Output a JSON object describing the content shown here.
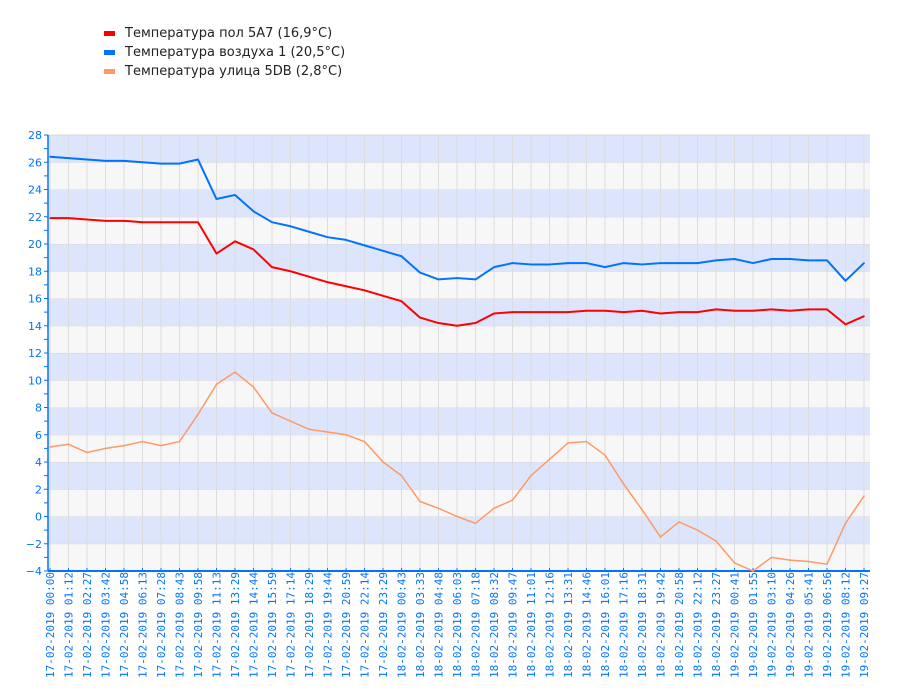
{
  "legend": [
    {
      "label": "Температура пол 5A7 (16,9°C)",
      "color": "#ff0000"
    },
    {
      "label": "Температура воздуха 1 (20,5°C)",
      "color": "#0073ff"
    },
    {
      "label": "Температура улица 5DB (2,8°C)",
      "color": "#ff9966"
    }
  ],
  "chart_data": {
    "type": "line",
    "title": "",
    "xlabel": "",
    "ylabel": "",
    "ylim": [
      -4,
      28
    ],
    "yticks": [
      -4,
      -2,
      0,
      2,
      4,
      6,
      8,
      10,
      12,
      14,
      16,
      18,
      20,
      22,
      24,
      26,
      28
    ],
    "grid": true,
    "legend_position": "top-left",
    "axis_color": "#0073ff",
    "band_colors": [
      "#dde5fc",
      "#f7f7f7"
    ],
    "categories": [
      "17-02-2019 00:00",
      "17-02-2019 01:12",
      "17-02-2019 02:27",
      "17-02-2019 03:42",
      "17-02-2019 04:58",
      "17-02-2019 06:13",
      "17-02-2019 07:28",
      "17-02-2019 08:43",
      "17-02-2019 09:58",
      "17-02-2019 11:13",
      "17-02-2019 13:29",
      "17-02-2019 14:44",
      "17-02-2019 15:59",
      "17-02-2019 17:14",
      "17-02-2019 18:29",
      "17-02-2019 19:44",
      "17-02-2019 20:59",
      "17-02-2019 22:14",
      "17-02-2019 23:29",
      "18-02-2019 00:43",
      "18-02-2019 03:33",
      "18-02-2019 04:48",
      "18-02-2019 06:03",
      "18-02-2019 07:18",
      "18-02-2019 08:32",
      "18-02-2019 09:47",
      "18-02-2019 11:01",
      "18-02-2019 12:16",
      "18-02-2019 13:31",
      "18-02-2019 14:46",
      "18-02-2019 16:01",
      "18-02-2019 17:16",
      "18-02-2019 18:31",
      "18-02-2019 19:42",
      "18-02-2019 20:58",
      "18-02-2019 22:12",
      "18-02-2019 23:27",
      "19-02-2019 00:41",
      "19-02-2019 01:55",
      "19-02-2019 03:10",
      "19-02-2019 04:26",
      "19-02-2019 05:41",
      "19-02-2019 06:56",
      "19-02-2019 08:12",
      "19-02-2019 09:27"
    ],
    "series": [
      {
        "name": "Температура пол 5A7 (16,9°C)",
        "color": "#ff0000",
        "values": [
          21.9,
          21.9,
          21.8,
          21.7,
          21.7,
          21.6,
          21.6,
          21.6,
          21.6,
          19.3,
          20.2,
          19.6,
          18.3,
          18.0,
          17.6,
          17.2,
          16.9,
          16.6,
          16.2,
          15.8,
          14.6,
          14.2,
          14.0,
          14.2,
          14.9,
          15.0,
          15.0,
          15.0,
          15.0,
          15.1,
          15.1,
          15.0,
          15.1,
          14.9,
          15.0,
          15.0,
          15.2,
          15.1,
          15.1,
          15.2,
          15.1,
          15.2,
          15.2,
          14.1,
          14.7
        ]
      },
      {
        "name": "Температура воздуха 1 (20,5°C)",
        "color": "#0073ff",
        "values": [
          26.4,
          26.3,
          26.2,
          26.1,
          26.1,
          26.0,
          25.9,
          25.9,
          26.2,
          23.3,
          23.6,
          22.4,
          21.6,
          21.3,
          20.9,
          20.5,
          20.3,
          19.9,
          19.5,
          19.1,
          17.9,
          17.4,
          17.5,
          17.4,
          18.3,
          18.6,
          18.5,
          18.5,
          18.6,
          18.6,
          18.3,
          18.6,
          18.5,
          18.6,
          18.6,
          18.6,
          18.8,
          18.9,
          18.6,
          18.9,
          18.9,
          18.8,
          18.8,
          17.3,
          18.6
        ]
      },
      {
        "name": "Температура улица 5DB (2,8°C)",
        "color": "#ff9966",
        "values": [
          5.1,
          5.3,
          4.7,
          5.0,
          5.2,
          5.5,
          5.2,
          5.5,
          7.5,
          9.7,
          10.6,
          9.5,
          7.6,
          7.0,
          6.4,
          6.2,
          6.0,
          5.5,
          4.0,
          3.0,
          1.1,
          0.6,
          0.0,
          -0.5,
          0.6,
          1.2,
          3.0,
          4.2,
          5.4,
          5.5,
          4.5,
          2.4,
          0.5,
          -1.5,
          -0.4,
          -1.0,
          -1.8,
          -3.4,
          -4.0,
          -3.0,
          -3.2,
          -3.3,
          -3.5,
          -0.5,
          1.5
        ]
      }
    ]
  }
}
